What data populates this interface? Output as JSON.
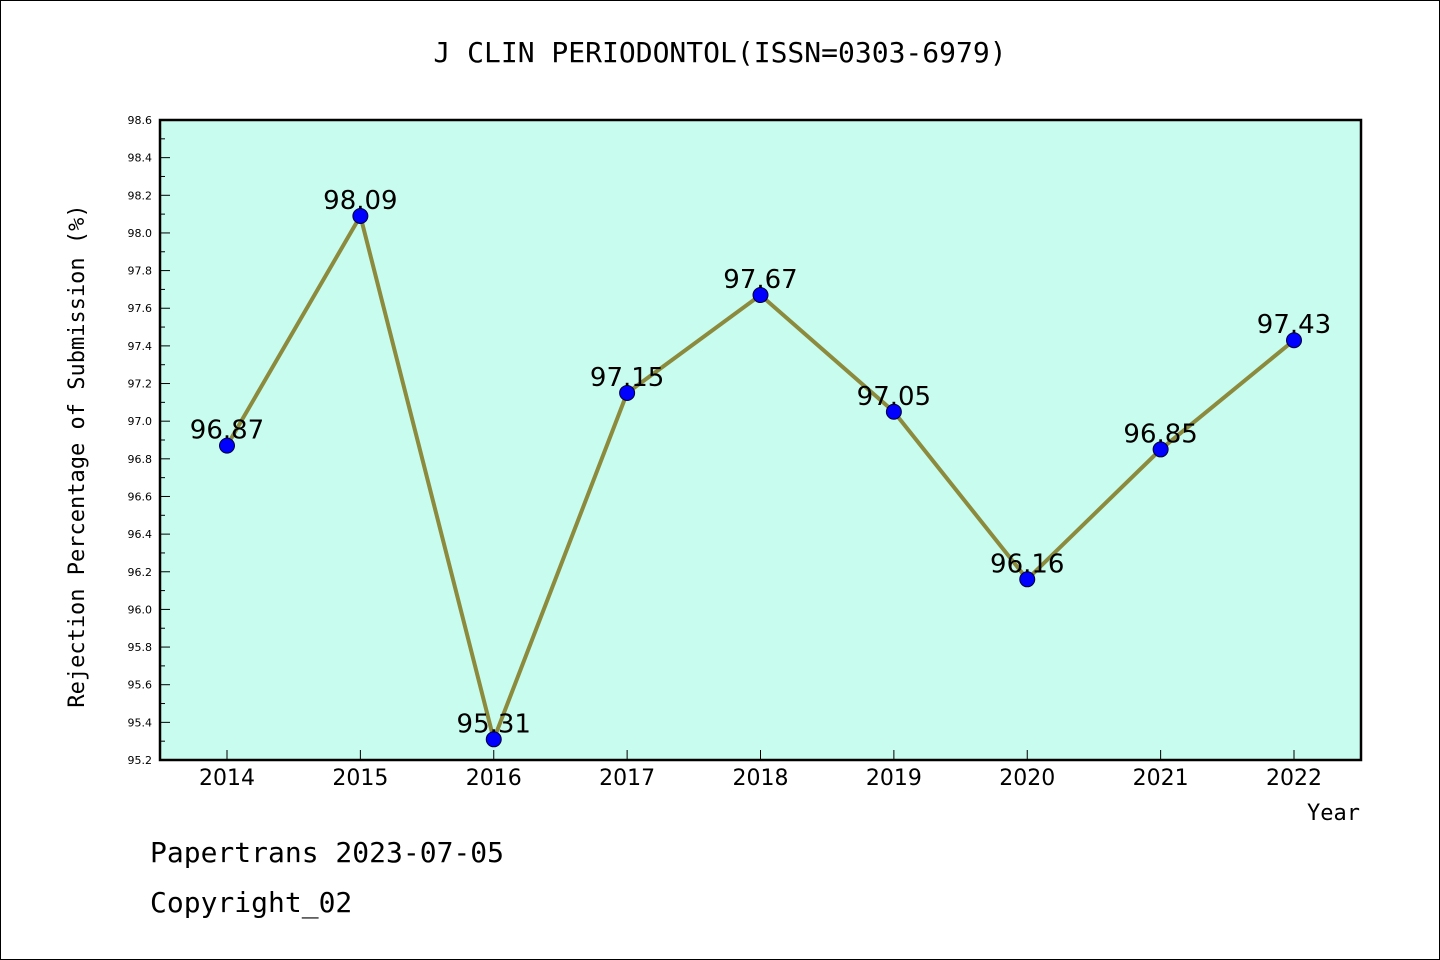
{
  "chart_data": {
    "type": "line",
    "title": "J CLIN PERIODONTOL(ISSN=0303-6979)",
    "xlabel": "Year",
    "ylabel": "Rejection Percentage of Submission (%)",
    "categories": [
      "2014",
      "2015",
      "2016",
      "2017",
      "2018",
      "2019",
      "2020",
      "2021",
      "2022"
    ],
    "series": [
      {
        "values": [
          96.87,
          98.09,
          95.31,
          97.15,
          97.67,
          97.05,
          96.16,
          96.85,
          97.43
        ]
      }
    ],
    "data_labels": [
      "96.87",
      "98.09",
      "95.31",
      "97.15",
      "97.67",
      "97.05",
      "96.16",
      "96.85",
      "97.43"
    ],
    "ylim": [
      95.2,
      98.6
    ],
    "yticks": [
      "95.2",
      "95.4",
      "95.6",
      "95.8",
      "96.0",
      "96.2",
      "96.4",
      "96.6",
      "96.8",
      "97.0",
      "97.2",
      "97.4",
      "97.6",
      "97.8",
      "98.0",
      "98.2",
      "98.4",
      "98.6"
    ],
    "grid": false,
    "colors": {
      "plot_bg": "#c8fcee",
      "line": "#8c8a3c",
      "marker": "#0000ff"
    }
  },
  "footer": {
    "line1": "Papertrans 2023-07-05",
    "line2": "Copyright_02"
  }
}
